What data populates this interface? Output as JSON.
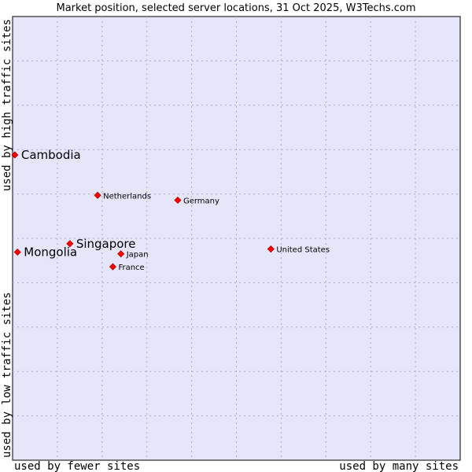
{
  "chart_data": {
    "type": "scatter",
    "title": "Market position, selected server locations, 31 Oct 2025, W3Techs.com",
    "xlabel_left": "used by fewer sites",
    "xlabel_right": "used by many sites",
    "ylabel_bottom": "used by low traffic sites",
    "ylabel_top": "used by high traffic sites",
    "xlim": [
      0,
      100
    ],
    "ylim": [
      0,
      100
    ],
    "grid": true,
    "colors": {
      "plot_background": "#e6e6fa",
      "marker": "#ff0000",
      "marker_edge": "#b00000",
      "grid": "#aaaacc"
    },
    "points": [
      {
        "label": "Cambodia",
        "x": 0.5,
        "y": 68.8,
        "emphasis": true
      },
      {
        "label": "Netherlands",
        "x": 19.0,
        "y": 59.7,
        "emphasis": false
      },
      {
        "label": "Germany",
        "x": 36.9,
        "y": 58.6,
        "emphasis": false
      },
      {
        "label": "Singapore",
        "x": 12.8,
        "y": 48.8,
        "emphasis": true
      },
      {
        "label": "Mongolia",
        "x": 1.1,
        "y": 46.9,
        "emphasis": true
      },
      {
        "label": "Japan",
        "x": 24.2,
        "y": 46.5,
        "emphasis": false
      },
      {
        "label": "United States",
        "x": 57.7,
        "y": 47.6,
        "emphasis": false
      },
      {
        "label": "France",
        "x": 22.4,
        "y": 43.6,
        "emphasis": false
      }
    ]
  }
}
